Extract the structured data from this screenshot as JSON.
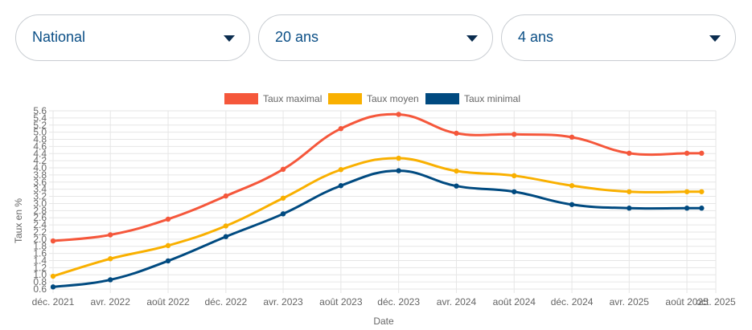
{
  "filters": [
    {
      "value": "National"
    },
    {
      "value": "20 ans"
    },
    {
      "value": "4 ans"
    }
  ],
  "colors": {
    "max": "#f5573b",
    "avg": "#f9b000",
    "min": "#004a80",
    "select_text": "#0b4f86"
  },
  "chart_data": {
    "type": "line",
    "xlabel": "Date",
    "ylabel": "Taux en %",
    "ylim": [
      0.6,
      5.6
    ],
    "yticks": [
      "0.6",
      "0.8",
      "1.0",
      "1.2",
      "1.4",
      "1.6",
      "1.8",
      "2.0",
      "2.2",
      "2.4",
      "2.6",
      "2.8",
      "3.0",
      "3.2",
      "3.4",
      "3.6",
      "3.8",
      "4.0",
      "4.2",
      "4.4",
      "4.6",
      "4.8",
      "5.0",
      "5.2",
      "5.4",
      "5.6"
    ],
    "x_tick_labels": [
      "déc. 2021",
      "avr. 2022",
      "août 2022",
      "déc. 2022",
      "avr. 2023",
      "août 2023",
      "déc. 2023",
      "avr. 2024",
      "août 2024",
      "déc. 2024",
      "avr. 2025",
      "août 2025",
      "oct. 2025"
    ],
    "grid": true,
    "legend": "top-center",
    "x": [
      "2021-12-01",
      "2022-04-01",
      "2022-08-01",
      "2022-12-01",
      "2023-04-01",
      "2023-08-01",
      "2023-12-01",
      "2024-04-01",
      "2024-08-01",
      "2024-12-01",
      "2025-04-01",
      "2025-08-01",
      "2025-09-01"
    ],
    "series": [
      {
        "name": "Taux maximal",
        "values": [
          1.95,
          2.12,
          2.56,
          3.21,
          3.96,
          5.1,
          5.5,
          4.97,
          4.94,
          4.86,
          4.41,
          4.41,
          4.41
        ]
      },
      {
        "name": "Taux moyen",
        "values": [
          0.96,
          1.45,
          1.82,
          2.37,
          3.15,
          3.95,
          4.27,
          3.91,
          3.78,
          3.5,
          3.33,
          3.33,
          3.33
        ]
      },
      {
        "name": "Taux minimal",
        "values": [
          0.66,
          0.86,
          1.39,
          2.07,
          2.71,
          3.5,
          3.92,
          3.49,
          3.33,
          2.97,
          2.87,
          2.87,
          2.87
        ]
      }
    ]
  }
}
